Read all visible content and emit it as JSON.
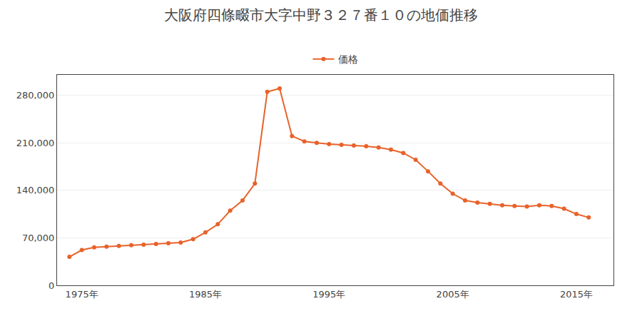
{
  "chart_data": {
    "type": "line",
    "title": "大阪府四條畷市大字中野３２７番１０の地価推移",
    "x": [
      1974,
      1975,
      1976,
      1977,
      1978,
      1979,
      1980,
      1981,
      1982,
      1983,
      1984,
      1985,
      1986,
      1987,
      1988,
      1989,
      1990,
      1991,
      1992,
      1993,
      1994,
      1995,
      1996,
      1997,
      1998,
      1999,
      2000,
      2001,
      2002,
      2003,
      2004,
      2005,
      2006,
      2007,
      2008,
      2009,
      2010,
      2011,
      2012,
      2013,
      2014,
      2015,
      2016
    ],
    "series": [
      {
        "name": "価格",
        "color": "#e8622a",
        "marker": "circle",
        "values": [
          42000,
          52000,
          56000,
          57000,
          58000,
          59000,
          60000,
          61000,
          62000,
          63000,
          68000,
          78000,
          90000,
          110000,
          125000,
          150000,
          285000,
          290000,
          220000,
          212000,
          210000,
          208000,
          207000,
          206000,
          205000,
          203000,
          200000,
          195000,
          185000,
          168000,
          150000,
          135000,
          125000,
          122000,
          120000,
          118000,
          117000,
          116000,
          118000,
          117000,
          113000,
          105000,
          100000
        ]
      }
    ],
    "xlim": [
      1973,
      2018
    ],
    "xticks": [
      {
        "value": 1975,
        "label": "1975年"
      },
      {
        "value": 1985,
        "label": "1985年"
      },
      {
        "value": 1995,
        "label": "1995年"
      },
      {
        "value": 2005,
        "label": "2005年"
      },
      {
        "value": 2015,
        "label": "2015年"
      }
    ],
    "ylim": [
      0,
      310000
    ],
    "yticks": [
      0,
      {
        "value": 70000,
        "label": "70,000"
      },
      {
        "value": 140000,
        "label": "140,000"
      },
      {
        "value": 210000,
        "label": "210,000"
      },
      {
        "value": 280000,
        "label": "280,000"
      }
    ],
    "grid": "y",
    "legend": "top"
  }
}
